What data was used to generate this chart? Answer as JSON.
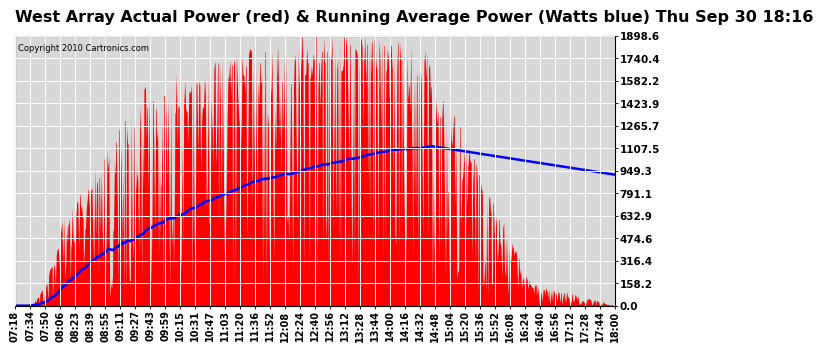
{
  "title": "West Array Actual Power (red) & Running Average Power (Watts blue) Thu Sep 30 18:16",
  "copyright": "Copyright 2010 Cartronics.com",
  "y_ticks": [
    0.0,
    158.2,
    316.4,
    474.6,
    632.9,
    791.1,
    949.3,
    1107.5,
    1265.7,
    1423.9,
    1582.2,
    1740.4,
    1898.6
  ],
  "y_max": 1898.6,
  "x_labels": [
    "07:18",
    "07:34",
    "07:50",
    "08:06",
    "08:23",
    "08:39",
    "08:55",
    "09:11",
    "09:27",
    "09:43",
    "09:59",
    "10:15",
    "10:31",
    "10:47",
    "11:03",
    "11:20",
    "11:36",
    "11:52",
    "12:08",
    "12:24",
    "12:40",
    "12:56",
    "13:12",
    "13:28",
    "13:44",
    "14:00",
    "14:16",
    "14:32",
    "14:48",
    "15:04",
    "15:20",
    "15:36",
    "15:52",
    "16:08",
    "16:24",
    "16:40",
    "16:56",
    "17:12",
    "17:28",
    "17:44",
    "18:00"
  ],
  "background_color": "#ffffff",
  "plot_background": "#d8d8d8",
  "grid_color": "#ffffff",
  "bar_color": "#ff0000",
  "line_color": "#0000ff",
  "title_fontsize": 11.5,
  "tick_fontsize": 7,
  "y_label_fontsize": 7.5
}
